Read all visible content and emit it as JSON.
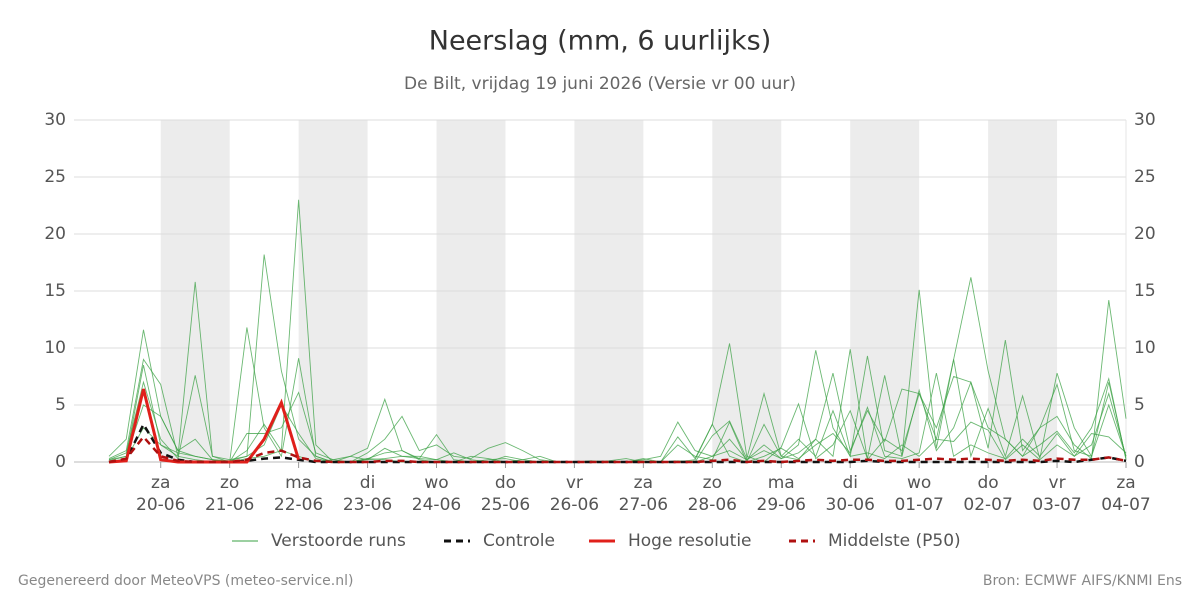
{
  "chart_data": {
    "type": "line",
    "title": "Neerslag (mm, 6 uurlijks)",
    "subtitle": "De Bilt, vrijdag 19 juni 2026 (Versie vr 00 uur)",
    "categories": [
      null,
      null,
      null,
      "20-06",
      null,
      null,
      null,
      "21-06",
      null,
      null,
      null,
      "22-06",
      null,
      null,
      null,
      "23-06",
      null,
      null,
      null,
      "24-06",
      null,
      null,
      null,
      "25-06",
      null,
      null,
      null,
      "26-06",
      null,
      null,
      null,
      "27-06",
      null,
      null,
      null,
      "28-06",
      null,
      null,
      null,
      "29-06",
      null,
      null,
      null,
      "30-06",
      null,
      null,
      null,
      "01-07",
      null,
      null,
      null,
      "02-07",
      null,
      null,
      null,
      "03-07",
      null,
      null,
      null,
      "04-07"
    ],
    "day_names": [
      null,
      null,
      null,
      "za",
      null,
      null,
      null,
      "zo",
      null,
      null,
      null,
      "ma",
      null,
      null,
      null,
      "di",
      null,
      null,
      null,
      "wo",
      null,
      null,
      null,
      "do",
      null,
      null,
      null,
      "vr",
      null,
      null,
      null,
      "za",
      null,
      null,
      null,
      "zo",
      null,
      null,
      null,
      "ma",
      null,
      null,
      null,
      "di",
      null,
      null,
      null,
      "wo",
      null,
      null,
      null,
      "do",
      null,
      null,
      null,
      "vr",
      null,
      null,
      null,
      "za"
    ],
    "ylim": [
      0,
      30
    ],
    "yticks": [
      0,
      5,
      10,
      15,
      20,
      25,
      30
    ],
    "y2lim": [
      0,
      30
    ],
    "y2ticks": [
      0,
      5,
      10,
      15,
      20,
      25,
      30
    ],
    "grid": true,
    "legend": "bottom",
    "series": [
      {
        "name": "Verstoorde runs",
        "color": "#3aa043",
        "members": [
          [
            0.5,
            2,
            11.6,
            4,
            1,
            0.5,
            0.2,
            0,
            0.3,
            0.5,
            1,
            23,
            1.5,
            0,
            0,
            0.3,
            0.2,
            0,
            0,
            0,
            0,
            0,
            0,
            0,
            0,
            0,
            0,
            0,
            0,
            0,
            0,
            0.2,
            0.5,
            3.5,
            1,
            0.5,
            2,
            0.2,
            1,
            0.3,
            1.5,
            9.8,
            3,
            0.5,
            9.3,
            1,
            0.5,
            6.3,
            1,
            3,
            7,
            1.2,
            10.7,
            1,
            3,
            6.8,
            1,
            0.5,
            5,
            0.5
          ],
          [
            0.3,
            1,
            9,
            6.8,
            0.5,
            15.8,
            0.5,
            0.2,
            0.5,
            18.2,
            8,
            2,
            0.5,
            0,
            0.5,
            1.2,
            5.5,
            1,
            0.3,
            0.2,
            0.8,
            0.2,
            0,
            0,
            0.2,
            0.5,
            0,
            0,
            0,
            0,
            0,
            0.1,
            0,
            0,
            0.2,
            3.3,
            10.4,
            0.5,
            0,
            1.3,
            5.1,
            0.3,
            1.5,
            4.5,
            0.3,
            7.6,
            0.5,
            15.1,
            1.2,
            9,
            16.2,
            8,
            2,
            0.5,
            3,
            4,
            1.5,
            0.3,
            14.2,
            3.8
          ],
          [
            0.2,
            0.8,
            7,
            2,
            0.3,
            7.6,
            0.5,
            0,
            11.8,
            3,
            0.5,
            9.1,
            0.5,
            0,
            0,
            0.8,
            2,
            4,
            1,
            1.5,
            0.5,
            0.3,
            1.2,
            1.7,
            1,
            0.2,
            0,
            0,
            0,
            0,
            0,
            0,
            0,
            0.1,
            0,
            2.3,
            3.6,
            0.3,
            6,
            0.5,
            0.2,
            2,
            7.8,
            1,
            4.5,
            1.8,
            6.4,
            6,
            2,
            9,
            0.5,
            4.7,
            0.5,
            5.8,
            0.3,
            7.8,
            3,
            0.5,
            7,
            0.3
          ],
          [
            0.1,
            0.5,
            5,
            4,
            1,
            2,
            0.2,
            0,
            2.5,
            2.5,
            3,
            6.1,
            0.8,
            0.2,
            0,
            0.3,
            0.8,
            1,
            0.2,
            0,
            0,
            0.5,
            0.3,
            0,
            0,
            0,
            0,
            0,
            0,
            0,
            0,
            0,
            0,
            0,
            0,
            0.5,
            1,
            0.2,
            1.5,
            0.3,
            0.8,
            2,
            0.5,
            9.9,
            0.2,
            2,
            1,
            6,
            3,
            7.5,
            7,
            3,
            2,
            0.5,
            1.5,
            2.7,
            0.8,
            3,
            7.3,
            0.2
          ],
          [
            0,
            0.3,
            3,
            1.5,
            0.5,
            0.2,
            0,
            0,
            1,
            3.3,
            1,
            0.5,
            0,
            0.2,
            0.5,
            0.2,
            1.2,
            0.5,
            0.3,
            2.4,
            0.2,
            0,
            0,
            0.5,
            0.2,
            0,
            0,
            0,
            0.1,
            0,
            0,
            0.3,
            0,
            2.2,
            0.3,
            3.3,
            0.5,
            0,
            3.3,
            0.5,
            2,
            0.5,
            4.5,
            0.5,
            0.8,
            0.3,
            1.5,
            0.5,
            2,
            1.8,
            3.5,
            2.8,
            0.2,
            1.5,
            0.2,
            1.5,
            0.5,
            2.5,
            2.2,
            0.8
          ],
          [
            0.2,
            0.5,
            8.5,
            1.5,
            0.8,
            0.5,
            0.2,
            0.1,
            0.5,
            1.5,
            5,
            2.5,
            0.3,
            0,
            0,
            0.2,
            0.3,
            0.5,
            0.5,
            0.2,
            0,
            0,
            0.2,
            0.3,
            0,
            0,
            0,
            0,
            0,
            0.1,
            0.3,
            0,
            0,
            1.5,
            0.5,
            0.2,
            3.5,
            0,
            0.5,
            1.2,
            0.3,
            1.5,
            2.5,
            0.8,
            4.8,
            0.5,
            0.3,
            0.8,
            7.8,
            0.5,
            1.5,
            0.8,
            0.3,
            2,
            0.5,
            2.5,
            0.5,
            1.5,
            6,
            0.5
          ]
        ]
      },
      {
        "name": "Controle",
        "color": "#111111",
        "dashed": true,
        "values": [
          0,
          0.2,
          3.3,
          0.8,
          0.2,
          0,
          0,
          0,
          0.1,
          0.3,
          0.4,
          0.2,
          0,
          0,
          0,
          0,
          0,
          0,
          0,
          0,
          0,
          0,
          0,
          0,
          0,
          0,
          0,
          0,
          0,
          0,
          0,
          0,
          0,
          0,
          0,
          0,
          0,
          0,
          0,
          0,
          0,
          0,
          0,
          0,
          0.1,
          0,
          0,
          0,
          0,
          0,
          0,
          0,
          0,
          0,
          0,
          0.1,
          0,
          0.2,
          0.4,
          0.1
        ]
      },
      {
        "name": "Hoge resolutie",
        "color": "#e0201b",
        "values": [
          0,
          0.1,
          6.4,
          0.2,
          0,
          0,
          0,
          0,
          0,
          2,
          5.2,
          0.2,
          null,
          null,
          null,
          null,
          null,
          null,
          null,
          null,
          null,
          null,
          null,
          null,
          null,
          null,
          null,
          null,
          null,
          null,
          null,
          null,
          null,
          null,
          null,
          null,
          null,
          null,
          null,
          null,
          null,
          null,
          null,
          null,
          null,
          null,
          null,
          null,
          null,
          null,
          null,
          null,
          null,
          null,
          null,
          null,
          null,
          null,
          null,
          null
        ]
      },
      {
        "name": "Middelste (P50)",
        "color": "#b01010",
        "dashed": true,
        "values": [
          0,
          0.3,
          2.2,
          0.5,
          0.1,
          0,
          0,
          0,
          0.2,
          0.8,
          1,
          0.4,
          0.1,
          0,
          0,
          0,
          0.1,
          0.1,
          0,
          0,
          0,
          0,
          0,
          0,
          0,
          0,
          0,
          0,
          0,
          0,
          0,
          0,
          0,
          0,
          0,
          0.1,
          0.2,
          0,
          0.1,
          0,
          0.1,
          0.2,
          0.1,
          0.2,
          0.2,
          0.1,
          0.1,
          0.2,
          0.3,
          0.2,
          0.3,
          0.2,
          0.1,
          0.2,
          0.1,
          0.3,
          0.2,
          0.2,
          0.4,
          0.1
        ]
      }
    ],
    "footer_left": "Gegenereerd door MeteoVPS (meteo-service.nl)",
    "footer_right": "Bron: ECMWF AIFS/KNMI Ens"
  }
}
